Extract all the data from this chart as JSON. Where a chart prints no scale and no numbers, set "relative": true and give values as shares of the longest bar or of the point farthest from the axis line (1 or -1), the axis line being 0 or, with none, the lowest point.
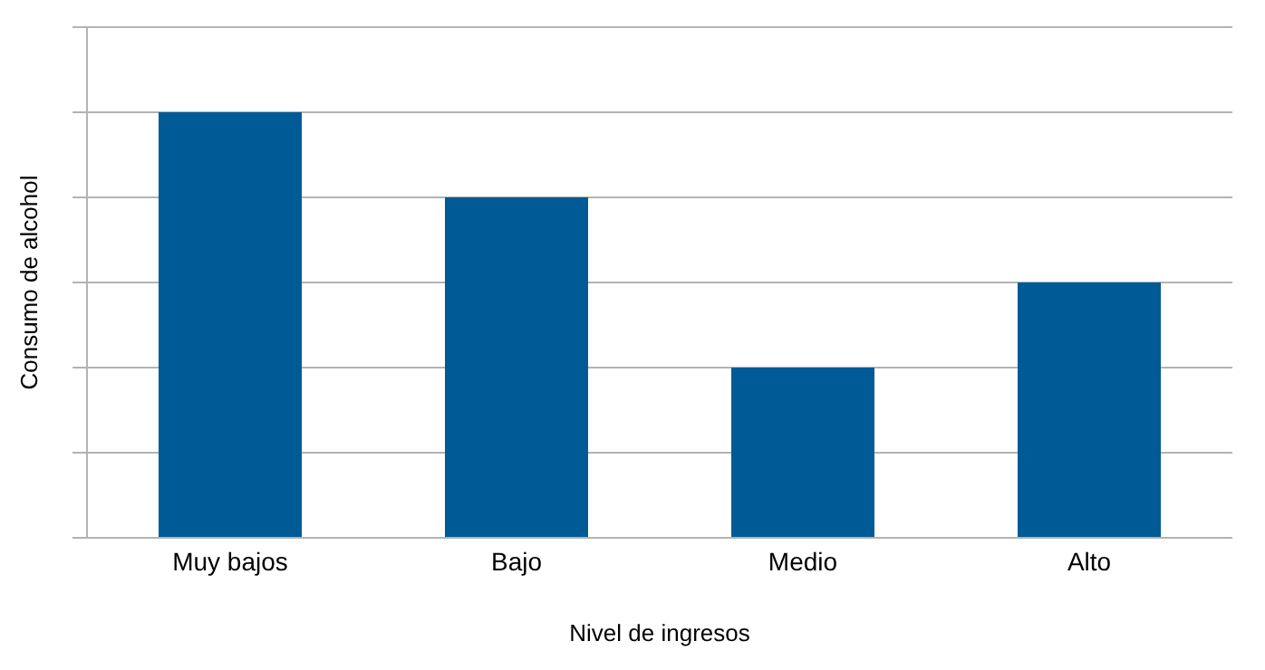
{
  "chart_data": {
    "type": "bar",
    "xlabel": "Nivel de ingresos",
    "ylabel": "Consumo de alcohol",
    "categories": [
      "Muy bajos",
      "Bajo",
      "Medio",
      "Alto"
    ],
    "values": [
      1,
      0.8,
      0.4,
      0.6
    ],
    "color": "#005a96",
    "relative": true,
    "grid": "y"
  }
}
